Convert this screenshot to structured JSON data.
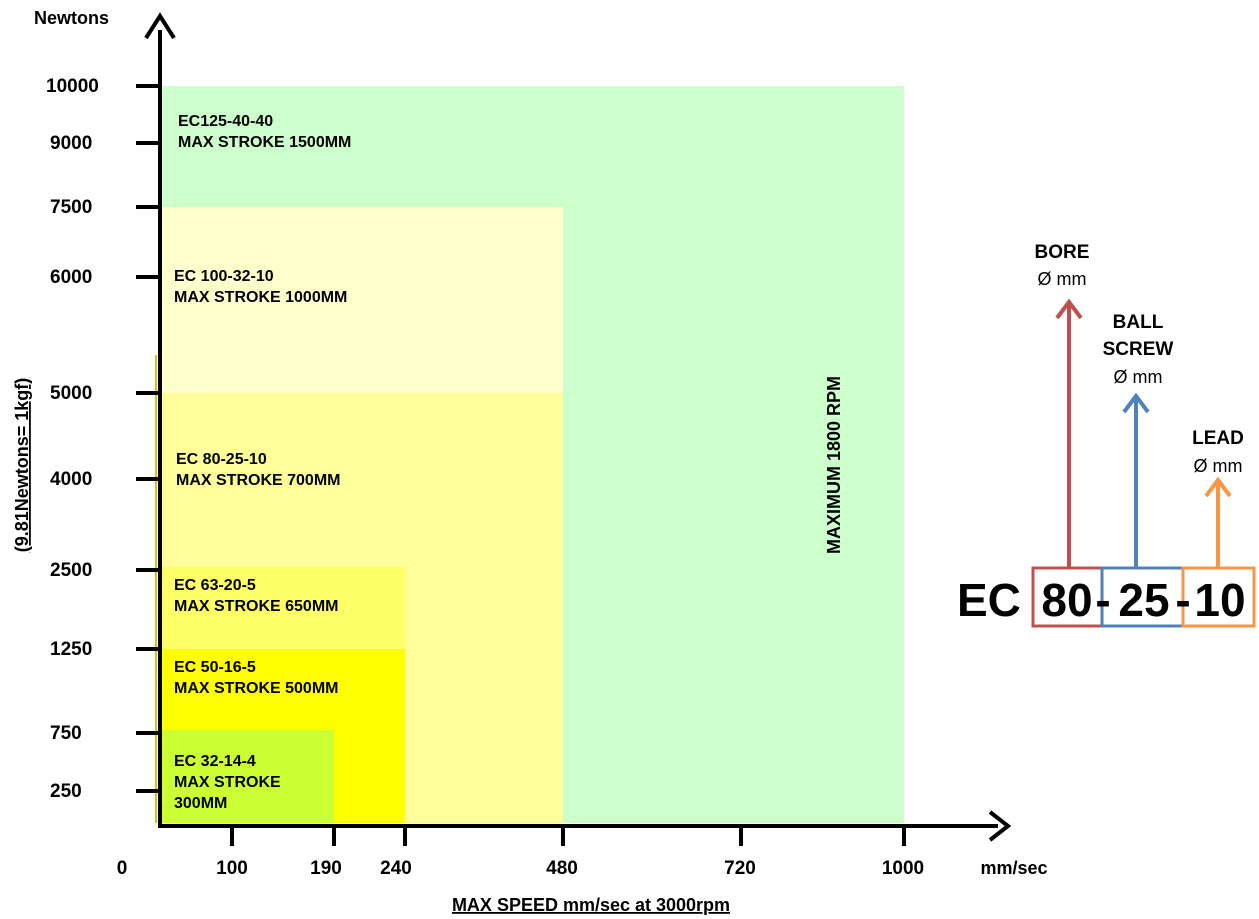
{
  "chart_data": {
    "type": "area",
    "ylabel_top": "Newtons",
    "ylabel_side": "(9.81Newtons= 1kgf)",
    "x_unit": "mm/sec",
    "xlabel": "MAX SPEED  mm/sec at 3000rpm",
    "x_ticks": [
      "0",
      "100",
      "190",
      "240",
      "480",
      "720",
      "1000"
    ],
    "y_ticks": [
      "250",
      "750",
      "1250",
      "2500",
      "4000",
      "5000",
      "6000",
      "7500",
      "9000",
      "10000"
    ],
    "regions": [
      {
        "model": "EC125-40-40",
        "stroke": "MAX STROKE 1500MM",
        "max_speed": "1000",
        "max_force": "10000",
        "color": "#ccffcc"
      },
      {
        "model": "EC 100-32-10",
        "stroke": "MAX STROKE 1000MM",
        "max_speed": "480",
        "max_force": "7500",
        "color": "#ffffcc"
      },
      {
        "model": "EC 80-25-10",
        "stroke": "MAX STROKE 700MM",
        "max_speed": "480",
        "max_force": "5000",
        "color": "#ffff99"
      },
      {
        "model": "EC 63-20-5",
        "stroke": "MAX STROKE 650MM",
        "max_speed": "240",
        "max_force": "2500",
        "color": "#ffff66"
      },
      {
        "model": "EC 50-16-5",
        "stroke": "MAX STROKE 500MM",
        "max_speed": "240",
        "max_force": "1250",
        "color": "#ffff00"
      },
      {
        "model": "EC 32-14-4",
        "stroke_lines": [
          "MAX STROKE",
          "300MM"
        ],
        "max_speed": "190",
        "max_force": "750",
        "color": "#ccff33"
      }
    ],
    "annotation": "MAXIMUM 1800 RPM"
  },
  "legend": {
    "prefix": "EC",
    "bore": {
      "value": "80",
      "title": "BORE",
      "unit": "Ø mm",
      "color": "#c0504d"
    },
    "screw": {
      "value": "25",
      "title_line1": "BALL",
      "title_line2": "SCREW",
      "unit": "Ø mm",
      "color": "#4f81bd"
    },
    "lead": {
      "value": "10",
      "title": "LEAD",
      "unit": "Ø mm",
      "color": "#f79646"
    },
    "dash": "-"
  }
}
